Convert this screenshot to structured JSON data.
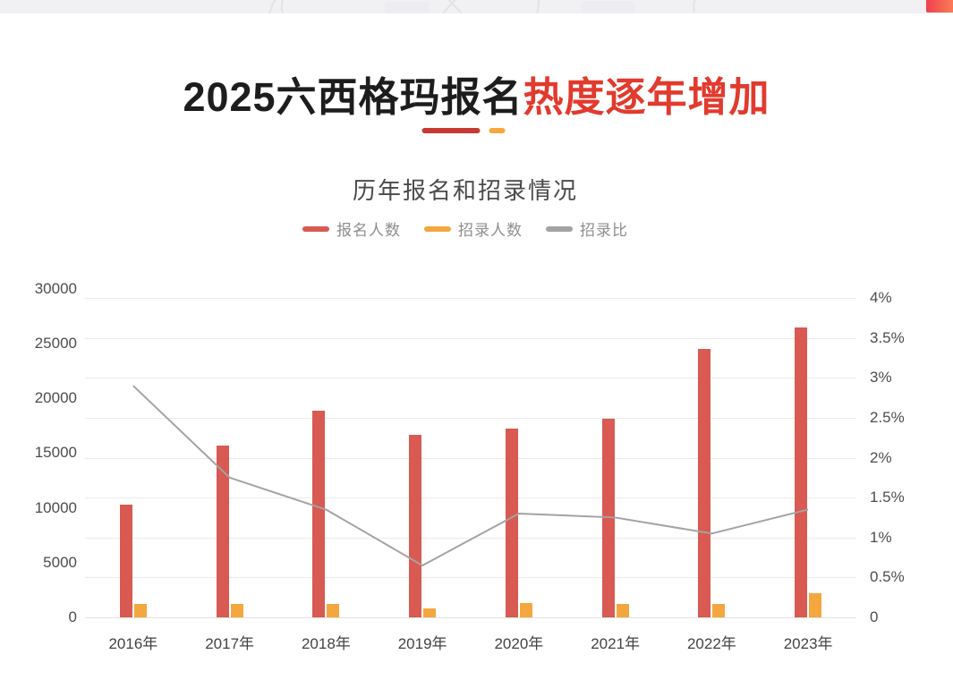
{
  "banner": {
    "strip_color": "#f1f1f4",
    "badge": {
      "color_start": "#ef4050",
      "color_end": "#fb7b54"
    }
  },
  "header": {
    "title_black": "2025六西格玛报名",
    "title_highlight": "热度逐年增加",
    "title_highlight_color": "#e23a2e",
    "underline_red": "#c63a31",
    "underline_orange": "#f5a83e"
  },
  "chart_data": {
    "type": "bar",
    "title": "历年报名和招录情况",
    "categories": [
      "2016年",
      "2017年",
      "2018年",
      "2019年",
      "2020年",
      "2021年",
      "2022年",
      "2023年"
    ],
    "series": [
      {
        "name": "报名人数",
        "type": "bar",
        "axis": "left",
        "color": "#d85a52",
        "values": [
          10300,
          15700,
          18900,
          16700,
          17200,
          18100,
          24500,
          26500
        ]
      },
      {
        "name": "招录人数",
        "type": "bar",
        "axis": "left",
        "color": "#f4a73e",
        "values": [
          1200,
          1200,
          1200,
          800,
          1300,
          1250,
          1200,
          2200
        ]
      },
      {
        "name": "招录比",
        "type": "line",
        "axis": "right",
        "color": "#a3a3a3",
        "values": [
          2.9,
          1.75,
          1.35,
          0.65,
          1.3,
          1.25,
          1.05,
          1.35
        ],
        "unit": "%"
      }
    ],
    "left_axis": {
      "min": 0,
      "max": 30000,
      "tick_labels": [
        "0",
        "5000",
        "10000",
        "15000",
        "20000",
        "25000",
        "30000"
      ],
      "tick_values": [
        0,
        5000,
        10000,
        15000,
        20000,
        25000,
        30000
      ]
    },
    "right_axis": {
      "min": 0,
      "max": 4,
      "tick_labels": [
        "0",
        "0.5%",
        "1%",
        "1.5%",
        "2%",
        "2.5%",
        "3%",
        "3.5%",
        "4%"
      ],
      "tick_values": [
        0,
        0.5,
        1,
        1.5,
        2,
        2.5,
        3,
        3.5,
        4
      ]
    },
    "grid": true,
    "legend_position": "top",
    "legend": [
      "报名人数",
      "招录人数",
      "招录比"
    ]
  }
}
